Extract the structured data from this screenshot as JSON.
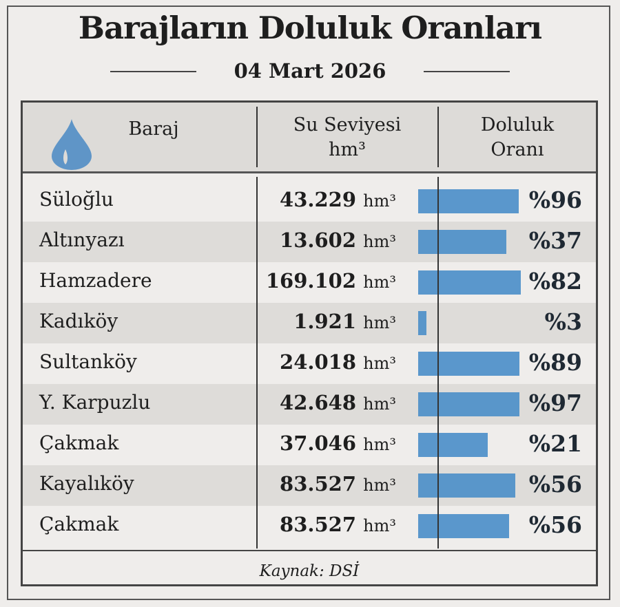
{
  "title": "Barajların Doluluk Oranları",
  "date": "04 Mart 2026",
  "chart_data": {
    "type": "table",
    "headers": [
      "Baraj",
      "Su Seviyesi",
      "hm³",
      "Doluluk",
      "Oranı"
    ],
    "unit": "hm³",
    "rows": [
      {
        "name": "Süloğlu",
        "level": "43.229",
        "pct": "%96",
        "value": 96,
        "bar_fill": 0.97
      },
      {
        "name": "Altınyazı",
        "level": "13.602",
        "pct": "%37",
        "value": 37,
        "bar_fill": 0.85
      },
      {
        "name": "Hamzadere",
        "level": "169.102",
        "pct": "%82",
        "value": 82,
        "bar_fill": 0.99
      },
      {
        "name": "Kadıköy",
        "level": "1.921",
        "pct": "%3",
        "value": 3,
        "bar_fill": 0.08
      },
      {
        "name": "Sultanköy",
        "level": "24.018",
        "pct": "%89",
        "value": 89,
        "bar_fill": 0.98
      },
      {
        "name": "Y. Karpuzlu",
        "level": "42.648",
        "pct": "%97",
        "value": 97,
        "bar_fill": 0.98
      },
      {
        "name": "Çakmak",
        "level": "37.046",
        "pct": "%21",
        "value": 21,
        "bar_fill": 0.67
      },
      {
        "name": "Kayalıköy",
        "level": "83.527",
        "pct": "%56",
        "value": 56,
        "bar_fill": 0.94
      },
      {
        "name": "Çakmak",
        "level": "83.527",
        "pct": "%56",
        "value": 56,
        "bar_fill": 0.88
      }
    ],
    "bar_color": "#4d8fc9"
  },
  "source": "Kaynak: DSİ"
}
